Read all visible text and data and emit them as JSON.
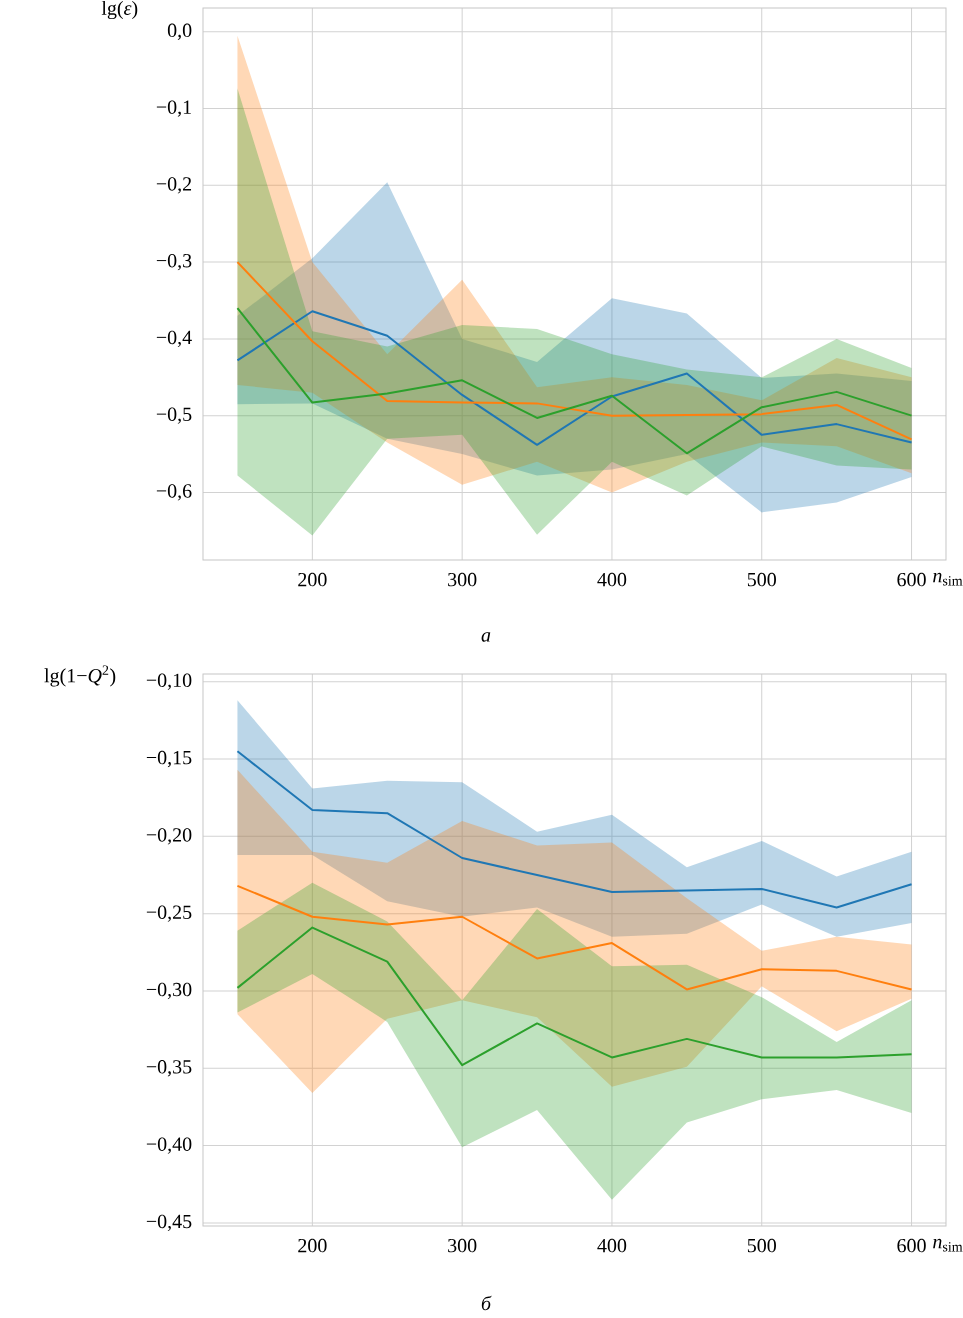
{
  "chart_data": [
    {
      "type": "line",
      "ylabel": "lg(*ε*)",
      "xlabel": "*n*$_{sim}$",
      "annotations": [
        "а"
      ],
      "grid": true,
      "x": [
        150,
        200,
        250,
        300,
        350,
        400,
        450,
        500,
        550,
        600
      ],
      "xlim": [
        127,
        623
      ],
      "ylim": [
        -0.688,
        0.031
      ],
      "xticks": [
        200,
        300,
        400,
        500,
        600
      ],
      "yticks": [
        {
          "value": 0,
          "label": "0,0"
        },
        {
          "value": -0.1,
          "label": "−0,1"
        },
        {
          "value": -0.2,
          "label": "−0,2"
        },
        {
          "value": -0.3,
          "label": "−0,3"
        },
        {
          "value": -0.4,
          "label": "−0,4"
        },
        {
          "value": -0.5,
          "label": "−0,5"
        },
        {
          "value": -0.6,
          "label": "−0,6"
        }
      ],
      "series": [
        {
          "color": "#1f77b4",
          "values": [
            -0.428,
            -0.364,
            -0.396,
            -0.473,
            -0.538,
            -0.475,
            -0.445,
            -0.525,
            -0.511,
            -0.535
          ],
          "upper": [
            -0.37,
            -0.295,
            -0.196,
            -0.4,
            -0.43,
            -0.347,
            -0.367,
            -0.451,
            -0.445,
            -0.455
          ],
          "lower": [
            -0.485,
            -0.484,
            -0.53,
            -0.55,
            -0.578,
            -0.57,
            -0.55,
            -0.626,
            -0.613,
            -0.58
          ]
        },
        {
          "color": "#ff7f0e",
          "values": [
            -0.3,
            -0.403,
            -0.481,
            -0.483,
            -0.484,
            -0.5,
            -0.499,
            -0.498,
            -0.486,
            -0.531
          ],
          "upper": [
            -0.005,
            -0.3,
            -0.42,
            -0.323,
            -0.463,
            -0.45,
            -0.46,
            -0.48,
            -0.425,
            -0.45
          ],
          "lower": [
            -0.46,
            -0.47,
            -0.535,
            -0.59,
            -0.56,
            -0.6,
            -0.56,
            -0.535,
            -0.54,
            -0.575
          ]
        },
        {
          "color": "#2ca02c",
          "values": [
            -0.36,
            -0.483,
            -0.471,
            -0.454,
            -0.503,
            -0.474,
            -0.549,
            -0.489,
            -0.469,
            -0.5
          ],
          "upper": [
            -0.074,
            -0.39,
            -0.41,
            -0.382,
            -0.387,
            -0.42,
            -0.44,
            -0.45,
            -0.4,
            -0.438
          ],
          "lower": [
            -0.578,
            -0.656,
            -0.53,
            -0.525,
            -0.655,
            -0.56,
            -0.604,
            -0.54,
            -0.565,
            -0.57
          ]
        }
      ]
    },
    {
      "type": "line",
      "ylabel": "lg(1−*Q*$^{2}$)",
      "xlabel": "*n*$_{sim}$",
      "annotations": [
        "б"
      ],
      "grid": true,
      "x": [
        150,
        200,
        250,
        300,
        350,
        400,
        450,
        500,
        550,
        600
      ],
      "xlim": [
        127,
        623
      ],
      "ylim": [
        -0.452,
        -0.095
      ],
      "xticks": [
        200,
        300,
        400,
        500,
        600
      ],
      "yticks": [
        {
          "value": -0.1,
          "label": "−0,10"
        },
        {
          "value": -0.15,
          "label": "−0,15"
        },
        {
          "value": -0.2,
          "label": "−0,20"
        },
        {
          "value": -0.25,
          "label": "−0,25"
        },
        {
          "value": -0.3,
          "label": "−0,30"
        },
        {
          "value": -0.35,
          "label": "−0,35"
        },
        {
          "value": -0.4,
          "label": "−0,40"
        },
        {
          "value": -0.45,
          "label": "−0,45"
        }
      ],
      "series": [
        {
          "color": "#1f77b4",
          "values": [
            -0.145,
            -0.183,
            -0.185,
            -0.214,
            -0.225,
            -0.236,
            -0.235,
            -0.234,
            -0.246,
            -0.231
          ],
          "upper": [
            -0.112,
            -0.169,
            -0.164,
            -0.165,
            -0.197,
            -0.186,
            -0.22,
            -0.203,
            -0.226,
            -0.21
          ],
          "lower": [
            -0.212,
            -0.212,
            -0.242,
            -0.252,
            -0.246,
            -0.265,
            -0.263,
            -0.244,
            -0.265,
            -0.256
          ]
        },
        {
          "color": "#ff7f0e",
          "values": [
            -0.232,
            -0.252,
            -0.257,
            -0.252,
            -0.279,
            -0.269,
            -0.299,
            -0.286,
            -0.287,
            -0.299
          ],
          "upper": [
            -0.157,
            -0.21,
            -0.217,
            -0.19,
            -0.206,
            -0.204,
            -0.24,
            -0.274,
            -0.265,
            -0.27
          ],
          "lower": [
            -0.315,
            -0.366,
            -0.318,
            -0.306,
            -0.317,
            -0.362,
            -0.349,
            -0.297,
            -0.326,
            -0.305
          ]
        },
        {
          "color": "#2ca02c",
          "values": [
            -0.298,
            -0.259,
            -0.281,
            -0.348,
            -0.321,
            -0.343,
            -0.331,
            -0.343,
            -0.343,
            -0.341
          ],
          "upper": [
            -0.261,
            -0.23,
            -0.255,
            -0.306,
            -0.247,
            -0.284,
            -0.283,
            -0.304,
            -0.333,
            -0.306
          ],
          "lower": [
            -0.314,
            -0.289,
            -0.32,
            -0.401,
            -0.377,
            -0.435,
            -0.385,
            -0.37,
            -0.364,
            -0.379
          ]
        }
      ]
    }
  ]
}
